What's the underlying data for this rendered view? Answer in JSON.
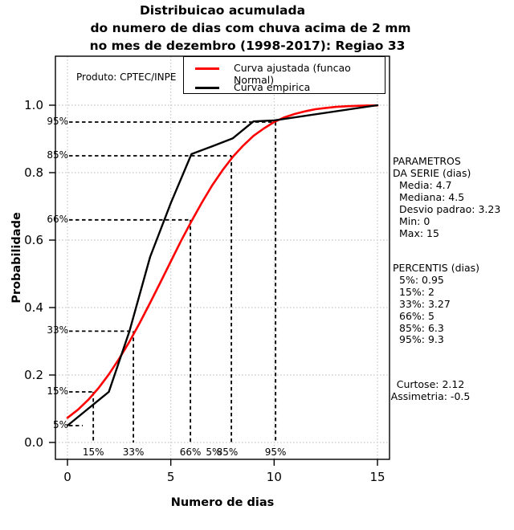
{
  "title": {
    "line1": "Distribuicao acumulada",
    "line2": "do numero de dias com chuva acima de 2 mm",
    "line3": "no mes de dezembro (1998-2017): Regiao 33"
  },
  "produto_label": "Produto: CPTEC/INPE",
  "legend": {
    "items": [
      {
        "label": "Curva ajustada (funcao Normal)",
        "color": "#ff0000"
      },
      {
        "label": "Curva empirica",
        "color": "#000000"
      }
    ]
  },
  "axes": {
    "x_label": "Numero de dias",
    "y_label": "Probabilidade",
    "x_ticks": [
      0,
      5,
      10,
      15
    ],
    "y_ticks": [
      {
        "value": 0.0,
        "label": "0.0"
      },
      {
        "value": 0.2,
        "label": "0.2"
      },
      {
        "value": 0.4,
        "label": "0.4"
      },
      {
        "value": 0.6,
        "label": "0.6"
      },
      {
        "value": 0.8,
        "label": "0.8"
      },
      {
        "value": 1.0,
        "label": "1.0"
      }
    ]
  },
  "stats_panel": {
    "params_title_line1": "PARAMETROS",
    "params_title_line2": "DA SERIE (dias)",
    "params": [
      "Media: 4.7",
      "Mediana: 4.5",
      "Desvio padrao: 3.23",
      "Min: 0",
      "Max: 15"
    ],
    "percentis_title": "PERCENTIS (dias)",
    "percentis": [
      "5%: 0.95",
      "15%: 2",
      "33%: 3.27",
      "66%: 5",
      "85%: 6.3",
      "95%: 9.3"
    ],
    "moments": [
      "Curtose: 2.12",
      "Assimetria: -0.5"
    ]
  },
  "chart_data": {
    "type": "line",
    "title": "Distribuicao acumulada do numero de dias com chuva acima de 2 mm no mes de dezembro (1998-2017): Regiao 33",
    "xlabel": "Numero de dias",
    "ylabel": "Probabilidade",
    "xlim": [
      0,
      15
    ],
    "ylim": [
      0,
      1.0
    ],
    "grid": true,
    "legend_position": "top",
    "series": [
      {
        "name": "Curva ajustada (funcao Normal)",
        "color": "#ff0000",
        "points": [
          [
            0,
            0.073
          ],
          [
            0.5,
            0.097
          ],
          [
            1,
            0.126
          ],
          [
            1.5,
            0.161
          ],
          [
            2,
            0.202
          ],
          [
            2.5,
            0.248
          ],
          [
            3,
            0.299
          ],
          [
            3.5,
            0.355
          ],
          [
            4,
            0.414
          ],
          [
            4.5,
            0.475
          ],
          [
            5,
            0.537
          ],
          [
            5.5,
            0.598
          ],
          [
            6,
            0.656
          ],
          [
            6.5,
            0.711
          ],
          [
            7,
            0.762
          ],
          [
            7.5,
            0.807
          ],
          [
            8,
            0.847
          ],
          [
            8.5,
            0.88
          ],
          [
            9,
            0.909
          ],
          [
            9.5,
            0.931
          ],
          [
            10,
            0.95
          ],
          [
            10.5,
            0.964
          ],
          [
            11,
            0.974
          ],
          [
            11.5,
            0.982
          ],
          [
            12,
            0.988
          ],
          [
            12.5,
            0.992
          ],
          [
            13,
            0.995
          ],
          [
            13.5,
            0.997
          ],
          [
            14,
            0.998
          ],
          [
            14.5,
            0.999
          ],
          [
            15,
            0.9993
          ]
        ]
      },
      {
        "name": "Curva empirica",
        "color": "#000000",
        "points": [
          [
            0,
            0.05
          ],
          [
            1,
            0.1
          ],
          [
            2,
            0.15
          ],
          [
            3,
            0.33
          ],
          [
            4,
            0.55
          ],
          [
            5,
            0.71
          ],
          [
            6,
            0.855
          ],
          [
            7,
            0.878
          ],
          [
            8,
            0.902
          ],
          [
            9,
            0.952
          ],
          [
            10,
            0.955
          ],
          [
            15,
            1.0
          ]
        ]
      }
    ],
    "percentile_lines": [
      {
        "label": "5%",
        "p": 0.05,
        "x": null,
        "bottom_label_x": 7.07
      },
      {
        "label": "15%",
        "p": 0.15,
        "x": 1.25,
        "bottom_label_x": 1.25
      },
      {
        "label": "33%",
        "p": 0.33,
        "x": 3.19,
        "bottom_label_x": 3.19
      },
      {
        "label": "66%",
        "p": 0.66,
        "x": 5.95,
        "bottom_label_x": 5.95
      },
      {
        "label": "85%",
        "p": 0.85,
        "x": 7.93,
        "bottom_label_x": 7.73
      },
      {
        "label": "95%",
        "p": 0.95,
        "x": 10.07,
        "bottom_label_x": 10.07
      }
    ],
    "stats_annotations": {
      "media": 4.7,
      "mediana": 4.5,
      "desvio_padrao": 3.23,
      "min": 0,
      "max": 15,
      "percentis": {
        "5%": 0.95,
        "15%": 2,
        "33%": 3.27,
        "66%": 5,
        "85%": 6.3,
        "95%": 9.3
      },
      "curtose": 2.12,
      "assimetria": -0.5
    }
  }
}
